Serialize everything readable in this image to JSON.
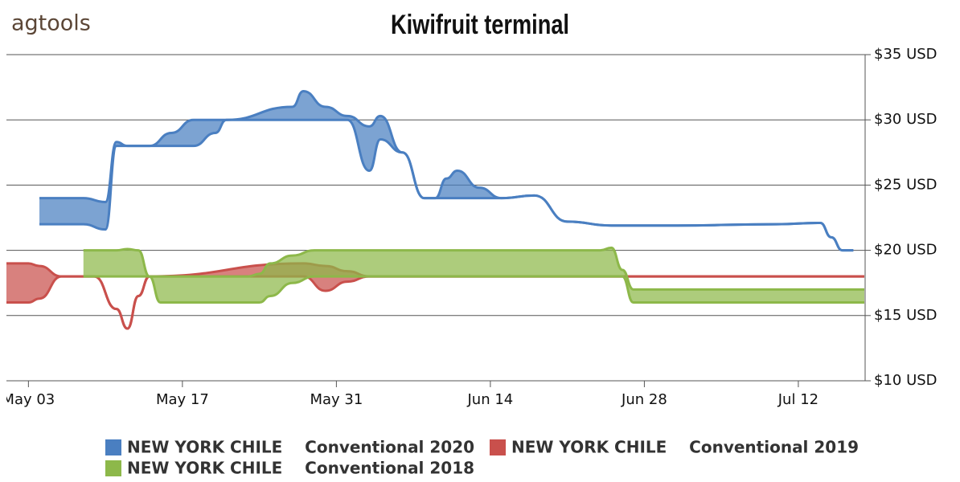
{
  "logo": "agtools",
  "chart_data": {
    "type": "arearange",
    "title": "Kiwifruit terminal",
    "xlim": [
      "May 01",
      "Jul 18"
    ],
    "xticks": [
      "May 03",
      "May 17",
      "May 31",
      "Jun 14",
      "Jun 28",
      "Jul 12"
    ],
    "ylim": [
      10,
      35
    ],
    "yticks": [
      {
        "value": 10,
        "label": "$10 USD"
      },
      {
        "value": 15,
        "label": "$15 USD"
      },
      {
        "value": 20,
        "label": "$20 USD"
      },
      {
        "value": 25,
        "label": "$25 USD"
      },
      {
        "value": 30,
        "label": "$30 USD"
      },
      {
        "value": 35,
        "label": "$35 USD"
      }
    ],
    "grid": true,
    "series": [
      {
        "name": "NEW YORK CHILE    Conventional 2020",
        "color": "#4a7fc1",
        "x": [
          "May 04",
          "May 08",
          "May 10",
          "May 11",
          "May 12",
          "May 14",
          "May 16",
          "May 18",
          "May 20",
          "May 21",
          "May 27",
          "May 28",
          "May 30",
          "Jun 01",
          "Jun 03",
          "Jun 04",
          "Jun 06",
          "Jun 08",
          "Jun 09",
          "Jun 10",
          "Jun 11",
          "Jun 13",
          "Jun 15",
          "Jun 18",
          "Jun 21",
          "Jun 25",
          "Jul 01",
          "Jul 10",
          "Jul 14",
          "Jul 15",
          "Jul 16",
          "Jul 17"
        ],
        "high": [
          24,
          24,
          23.7,
          28.3,
          28,
          28,
          29,
          30,
          30,
          30,
          31,
          32.2,
          31,
          30.3,
          29.5,
          30.3,
          27.5,
          24,
          24,
          25.5,
          26.1,
          24.8,
          24,
          24.2,
          22.2,
          21.9,
          21.9,
          22,
          22.1,
          21,
          20,
          20
        ],
        "low": [
          22,
          22,
          21.6,
          28,
          28,
          28,
          28,
          28,
          29,
          30,
          30,
          30,
          30,
          30,
          26.1,
          28.5,
          27.5,
          24,
          24,
          24,
          24,
          24,
          24,
          24.2,
          22.2,
          21.9,
          21.9,
          22,
          22.1,
          21,
          20,
          20
        ]
      },
      {
        "name": "NEW YORK CHILE    Conventional 2019",
        "color": "#c9504c",
        "x": [
          "May 01",
          "May 03",
          "May 04",
          "May 06",
          "May 08",
          "May 09",
          "May 11",
          "May 12",
          "May 13",
          "May 14",
          "May 28",
          "May 30",
          "Jun 01",
          "Jun 03",
          "Jul 18"
        ],
        "high": [
          19,
          19,
          18.8,
          18,
          18,
          18,
          15.5,
          14,
          16.5,
          18,
          19,
          18.8,
          18.4,
          18,
          18
        ],
        "low": [
          16,
          16,
          16.3,
          18,
          18,
          18,
          15.5,
          14,
          16.5,
          18,
          18,
          16.9,
          17.6,
          18,
          18
        ]
      },
      {
        "name": "NEW YORK CHILE    Conventional 2018",
        "color": "#8db84a",
        "x": [
          "May 08",
          "May 11",
          "May 12",
          "May 13",
          "May 14",
          "May 15",
          "May 23",
          "May 24",
          "May 25",
          "May 27",
          "May 29",
          "Jun 24",
          "Jun 25",
          "Jun 26",
          "Jun 27",
          "Jun 28",
          "Jul 18"
        ],
        "high": [
          20,
          20,
          20.1,
          20,
          18,
          18,
          18,
          18.2,
          19,
          19.6,
          20,
          20,
          20.2,
          18.5,
          17,
          17,
          17
        ],
        "low": [
          18,
          18,
          18,
          18,
          18,
          16,
          16,
          16,
          16.5,
          17.5,
          18,
          18,
          18,
          18,
          16,
          16,
          16
        ]
      }
    ]
  }
}
